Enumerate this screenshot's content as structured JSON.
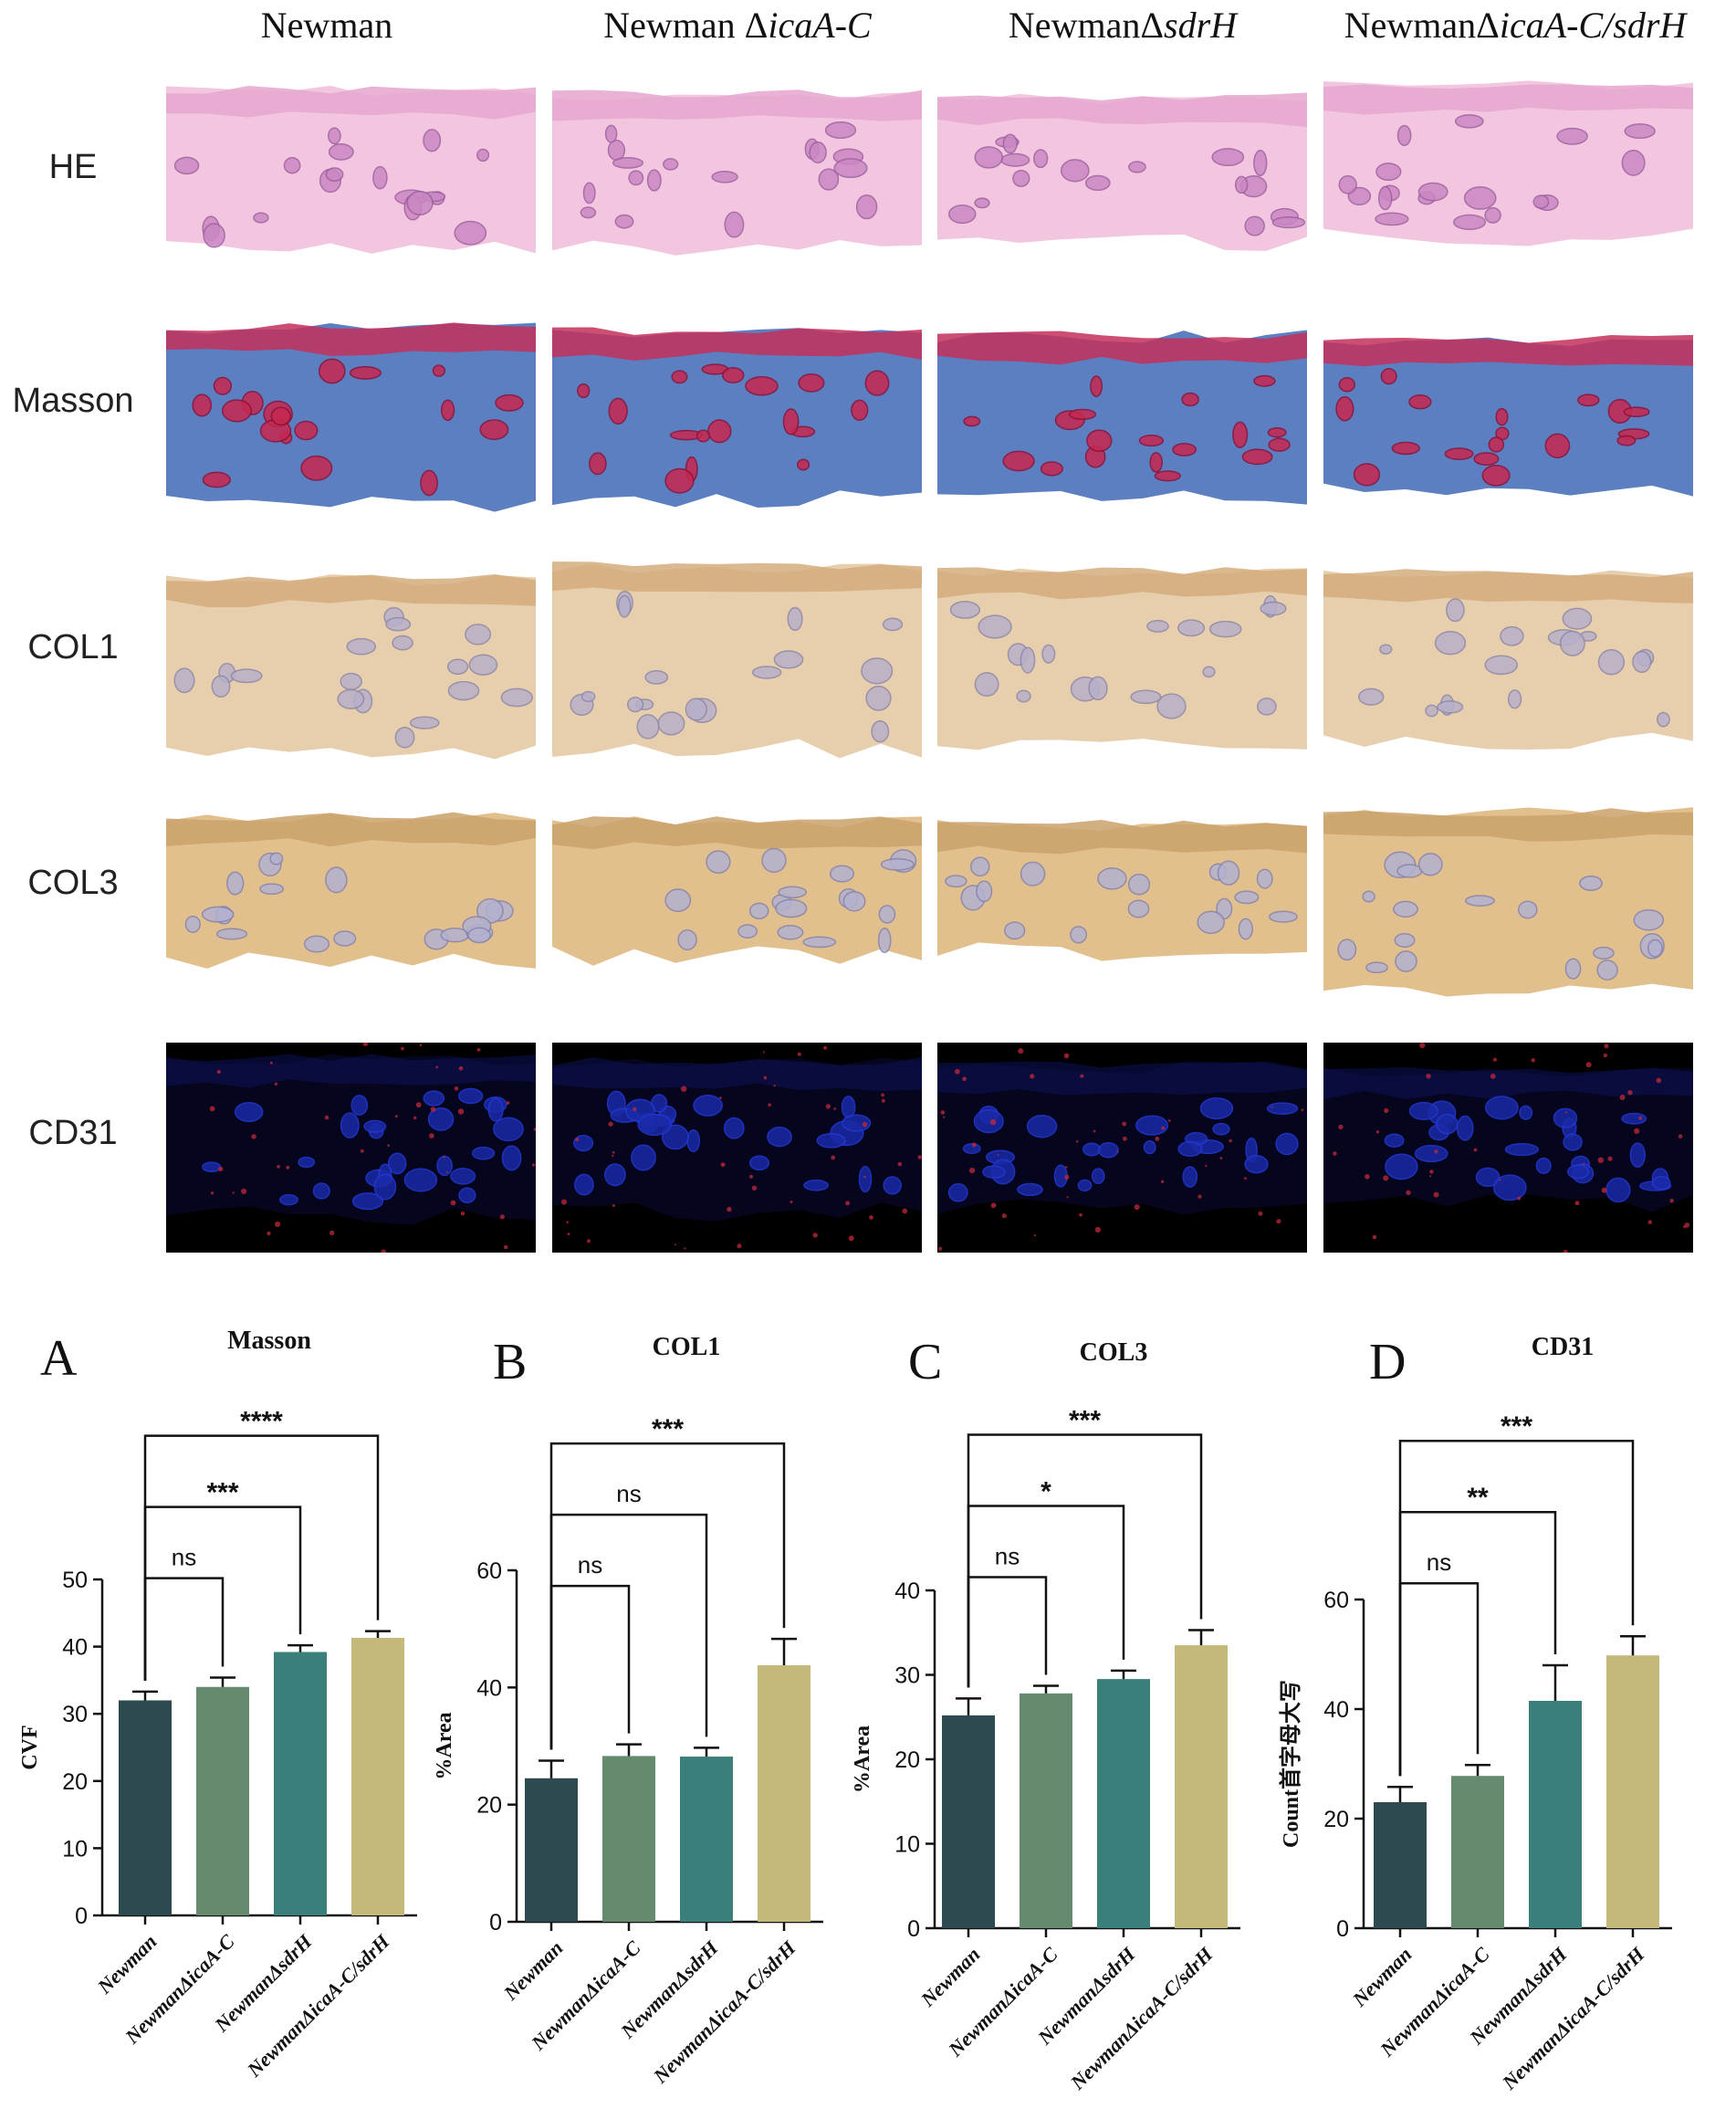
{
  "figure": {
    "columns": [
      {
        "pre": "Newman",
        "italic": ""
      },
      {
        "pre": "Newman Δ",
        "italic": "icaA-C"
      },
      {
        "pre": "NewmanΔ",
        "italic": "sdrH"
      },
      {
        "pre": "NewmanΔ",
        "italic": "icaA-C/sdrH"
      }
    ],
    "rows": [
      "HE",
      "Masson",
      "COL1",
      "COL3",
      "CD31"
    ]
  },
  "colors": {
    "bars": [
      "#2c4a4f",
      "#658a6e",
      "#3b7f7b",
      "#c4b87a"
    ]
  },
  "chart_data": [
    {
      "panel": "A",
      "type": "bar",
      "title": "Masson",
      "ylabel": "CVF",
      "xlabel": "",
      "categories": [
        "Newman",
        "NewmanΔicaA-C",
        "NewmanΔsdrH",
        "NewmanΔicaA-C/sdrH"
      ],
      "values": [
        32,
        34,
        39.2,
        41.3
      ],
      "errors": [
        1.3,
        1.4,
        1.0,
        1.0
      ],
      "ylim": [
        0,
        50
      ],
      "yticks": [
        0,
        10,
        20,
        30,
        40,
        50
      ],
      "comparisons": [
        {
          "to": 1,
          "label": "ns"
        },
        {
          "to": 2,
          "label": "***"
        },
        {
          "to": 3,
          "label": "****"
        }
      ]
    },
    {
      "panel": "B",
      "type": "bar",
      "title": "COL1",
      "ylabel": "%Area",
      "xlabel": "",
      "categories": [
        "Newman",
        "NewmanΔicaA-C",
        "NewmanΔsdrH",
        "NewmanΔicaA-C/sdrH"
      ],
      "values": [
        24.5,
        28.3,
        28.2,
        43.8
      ],
      "errors": [
        3.0,
        2.0,
        1.5,
        4.5
      ],
      "ylim": [
        0,
        60
      ],
      "yticks": [
        0,
        20,
        40,
        60
      ],
      "comparisons": [
        {
          "to": 1,
          "label": "ns"
        },
        {
          "to": 2,
          "label": "ns"
        },
        {
          "to": 3,
          "label": "***"
        }
      ]
    },
    {
      "panel": "C",
      "type": "bar",
      "title": "COL3",
      "ylabel": "%Area",
      "xlabel": "",
      "categories": [
        "Newman",
        "NewmanΔicaA-C",
        "NewmanΔsdrH",
        "NewmanΔicaA-C/sdrH"
      ],
      "values": [
        25.2,
        27.8,
        29.5,
        33.5
      ],
      "errors": [
        2.0,
        0.9,
        1.0,
        1.8
      ],
      "ylim": [
        0,
        40
      ],
      "yticks": [
        0,
        10,
        20,
        30,
        40
      ],
      "comparisons": [
        {
          "to": 1,
          "label": "ns"
        },
        {
          "to": 2,
          "label": "*"
        },
        {
          "to": 3,
          "label": "***"
        }
      ]
    },
    {
      "panel": "D",
      "type": "bar",
      "title": "CD31",
      "ylabel": "Count首字母大写",
      "xlabel": "",
      "categories": [
        "Newman",
        "NewmanΔicaA-C",
        "NewmanΔsdrH",
        "NewmanΔicaA-C/sdrH"
      ],
      "values": [
        23,
        27.8,
        41.5,
        49.8
      ],
      "errors": [
        2.8,
        2.0,
        6.5,
        3.5
      ],
      "ylim": [
        0,
        60
      ],
      "yticks": [
        0,
        20,
        40,
        60
      ],
      "comparisons": [
        {
          "to": 1,
          "label": "ns"
        },
        {
          "to": 2,
          "label": "**"
        },
        {
          "to": 3,
          "label": "***"
        }
      ]
    }
  ]
}
